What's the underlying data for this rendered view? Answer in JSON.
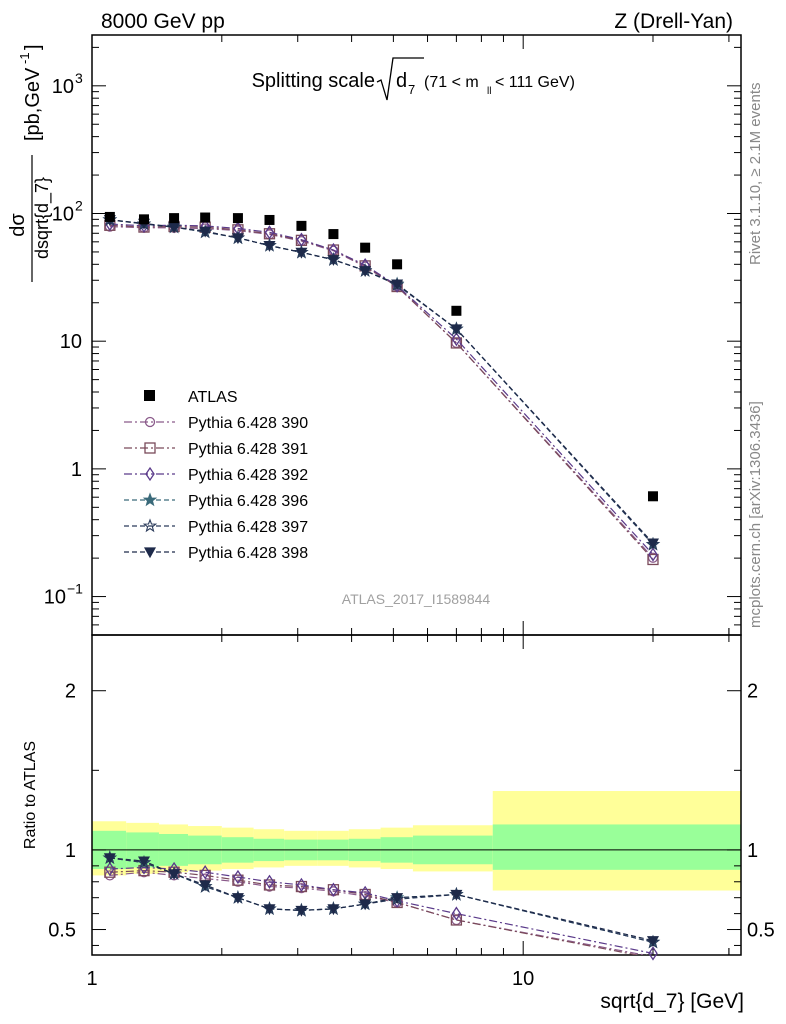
{
  "header": {
    "left": "8000 GeV pp",
    "right": "Z (Drell-Yan)"
  },
  "side_labels": {
    "rivet": "Rivet 3.1.10, ≥ 2.1M events",
    "mcplots": "mcplots.cern.ch [arXiv:1306.3436]"
  },
  "chart_data": {
    "type": "line",
    "title_main": "Splitting scale",
    "title_sqrt": "d",
    "title_sub": "7",
    "title_range": "(71 < m",
    "title_range_sub": "ll",
    "title_range_end": " < 111 GeV)",
    "watermark": "ATLAS_2017_I1589844",
    "xlabel": "sqrt{d_7} [GeV]",
    "ylabel_num": "dσ",
    "ylabel_den": "dsqrt{d_7}",
    "ylabel_unit": "[pb,GeV",
    "ylabel_unit_sup": "-1",
    "ylabel_unit_end": "]",
    "ratio_ylabel": "Ratio to ATLAS",
    "xscale": "log",
    "xlim": [
      1,
      32
    ],
    "yscale": "log",
    "ylim": [
      0.05,
      2500
    ],
    "ratio_ylim": [
      0.34,
      2.35
    ],
    "x_tick_labels": [
      "1",
      "10"
    ],
    "y_tick_labels": {
      "1000": {
        "base": "10",
        "exp": "3"
      },
      "100": {
        "base": "10",
        "exp": "2"
      },
      "10": {
        "base": "10",
        "exp": ""
      },
      "1": {
        "base": "1",
        "exp": ""
      },
      "0.1": {
        "base": "10",
        "exp": "−1"
      }
    },
    "ratio_tick_labels": {
      "2": "2",
      "1": "1",
      "0.5": "0.5"
    },
    "x": [
      1.1,
      1.32,
      1.55,
      1.83,
      2.18,
      2.58,
      3.06,
      3.63,
      4.3,
      5.1,
      7.0,
      20.0
    ],
    "band_edges": [
      1.0,
      1.2,
      1.43,
      1.67,
      2.0,
      2.37,
      2.79,
      3.33,
      3.94,
      4.67,
      5.55,
      8.5,
      32.0
    ],
    "band_green_lo": [
      0.88,
      0.89,
      0.9,
      0.91,
      0.92,
      0.93,
      0.935,
      0.935,
      0.93,
      0.92,
      0.91,
      0.875
    ],
    "band_green_hi": [
      1.12,
      1.11,
      1.1,
      1.09,
      1.08,
      1.07,
      1.065,
      1.065,
      1.07,
      1.08,
      1.09,
      1.16
    ],
    "band_yellow_lo": [
      0.84,
      0.85,
      0.86,
      0.87,
      0.88,
      0.89,
      0.9,
      0.9,
      0.89,
      0.88,
      0.865,
      0.745
    ],
    "band_yellow_hi": [
      1.18,
      1.17,
      1.16,
      1.15,
      1.14,
      1.13,
      1.12,
      1.12,
      1.13,
      1.14,
      1.155,
      1.37
    ],
    "data": {
      "name": "ATLAS",
      "y": [
        94,
        90,
        92,
        93,
        92,
        89,
        80,
        69,
        54,
        40,
        17.3,
        0.61
      ]
    },
    "series": [
      {
        "name": "Pythia 6.428 390",
        "marker": "circle-open",
        "dash": "8,3,2,3",
        "color": "#8a5a8a",
        "ratio": [
          0.84,
          0.86,
          0.84,
          0.82,
          0.8,
          0.77,
          0.76,
          0.74,
          0.71,
          0.67,
          0.56,
          0.33
        ]
      },
      {
        "name": "Pythia 6.428 391",
        "marker": "square-open",
        "dash": "8,3,2,3",
        "color": "#7a4a5a",
        "ratio": [
          0.86,
          0.87,
          0.86,
          0.84,
          0.81,
          0.78,
          0.77,
          0.75,
          0.72,
          0.67,
          0.56,
          0.32
        ]
      },
      {
        "name": "Pythia 6.428 392",
        "marker": "diamond-open",
        "dash": "8,3,2,3",
        "color": "#5a3a8a",
        "ratio": [
          0.88,
          0.89,
          0.88,
          0.86,
          0.83,
          0.8,
          0.78,
          0.75,
          0.73,
          0.68,
          0.6,
          0.35
        ]
      },
      {
        "name": "Pythia 6.428 396",
        "marker": "star-filled",
        "dash": "5,3",
        "color": "#3a6a7a",
        "ratio": [
          0.95,
          0.92,
          0.85,
          0.77,
          0.7,
          0.63,
          0.62,
          0.63,
          0.66,
          0.7,
          0.72,
          0.42
        ]
      },
      {
        "name": "Pythia 6.428 397",
        "marker": "star-open",
        "dash": "5,3",
        "color": "#2a3a5a",
        "ratio": [
          0.95,
          0.92,
          0.85,
          0.77,
          0.7,
          0.63,
          0.62,
          0.63,
          0.66,
          0.69,
          0.72,
          0.42
        ]
      },
      {
        "name": "Pythia 6.428 398",
        "marker": "triangle-down-filled",
        "dash": "5,3",
        "color": "#1e2a4a",
        "ratio": [
          0.95,
          0.93,
          0.85,
          0.78,
          0.7,
          0.63,
          0.62,
          0.63,
          0.66,
          0.7,
          0.72,
          0.43
        ]
      }
    ],
    "colors": {
      "band_green": "#99ff99",
      "band_yellow": "#ffff99",
      "data": "#000000"
    }
  }
}
